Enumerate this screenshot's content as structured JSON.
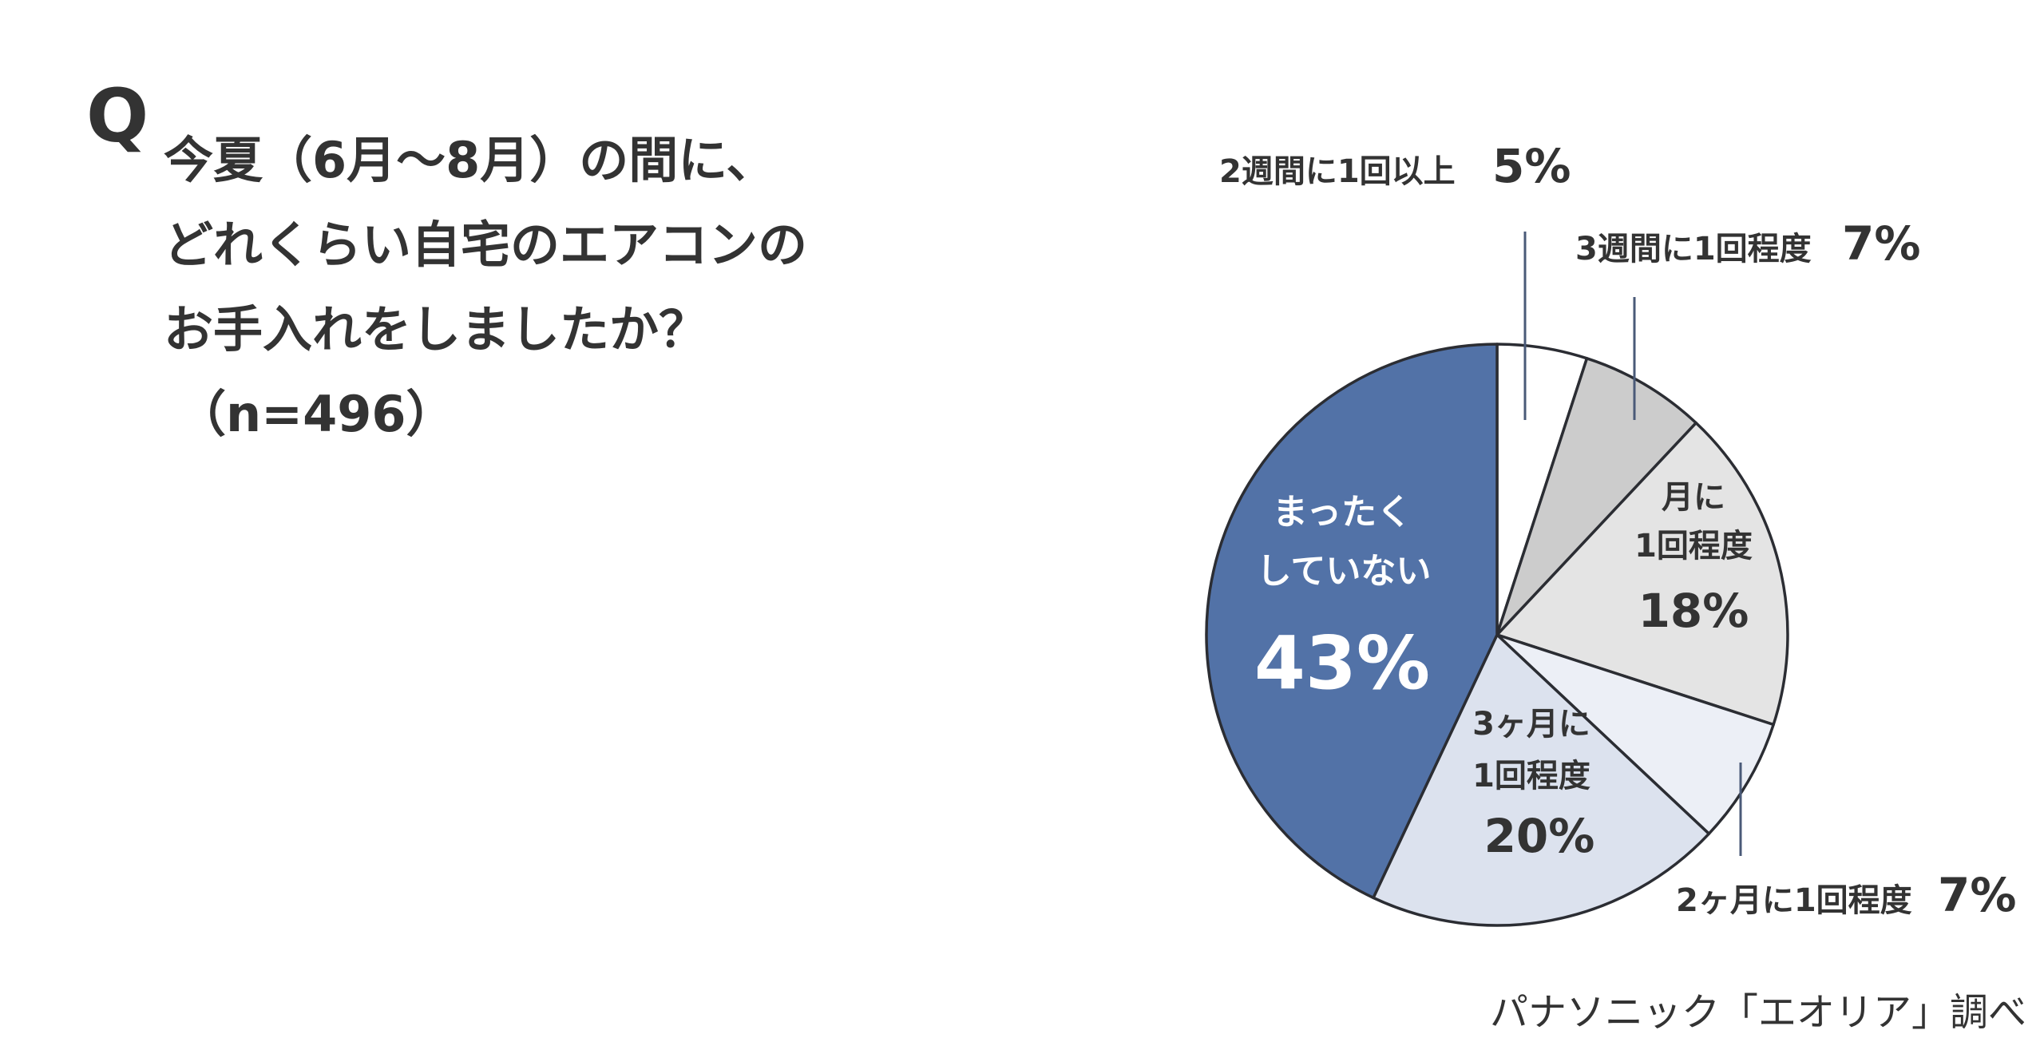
{
  "header": {
    "q_mark": "Q",
    "question_lines": [
      "今夏（6月〜8月）の間に、",
      "どれくらい自宅のエアコンの",
      "お手入れをしましたか？",
      "（n=496）"
    ]
  },
  "source": "パナソニック「エオリア」調べ",
  "colors": {
    "text": "#333333",
    "outline": "#2b2d33",
    "slice_white": "#ffffff",
    "slice_gray": "#cccccc",
    "slice_lightgray": "#e4e4e4",
    "slice_verylight": "#eceff6",
    "slice_lightblue": "#dce2ee",
    "slice_blue": "#5272a7"
  },
  "chart_data": {
    "type": "pie",
    "title": "",
    "slices": [
      {
        "label": "2週間に1回以上",
        "label_lines": [
          "2週間に1回以上"
        ],
        "value": 5,
        "pct_text": "5%",
        "color": "#ffffff",
        "label_position": "outside"
      },
      {
        "label": "3週間に1回程度",
        "label_lines": [
          "3週間に1回程度"
        ],
        "value": 7,
        "pct_text": "7%",
        "color": "#cccccc",
        "label_position": "outside"
      },
      {
        "label": "月に1回程度",
        "label_lines": [
          "月に",
          "1回程度"
        ],
        "value": 18,
        "pct_text": "18%",
        "color": "#e4e4e4",
        "label_position": "inside"
      },
      {
        "label": "2ヶ月に1回程度",
        "label_lines": [
          "2ヶ月に1回程度"
        ],
        "value": 7,
        "pct_text": "7%",
        "color": "#eceff6",
        "label_position": "outside"
      },
      {
        "label": "3ヶ月に1回程度",
        "label_lines": [
          "3ヶ月に",
          "1回程度"
        ],
        "value": 20,
        "pct_text": "20%",
        "color": "#dce2ee",
        "label_position": "inside"
      },
      {
        "label": "まったくしていない",
        "label_lines": [
          "まったく",
          "していない"
        ],
        "value": 43,
        "pct_text": "43%",
        "color": "#5272a7",
        "label_position": "inside"
      }
    ]
  }
}
